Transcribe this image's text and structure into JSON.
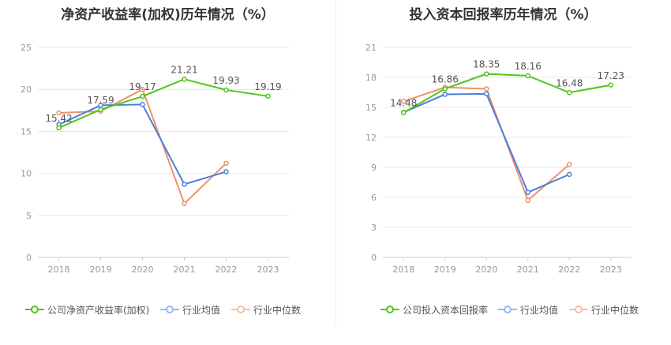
{
  "colors": {
    "company": "#52c41a",
    "avg": "#4a7fd9",
    "median": "#f0906a",
    "grid": "#e6e6f0",
    "axis": "#999999",
    "label": "#555555"
  },
  "chart_data": [
    {
      "type": "line",
      "title": "净资产收益率(加权)历年情况（%）",
      "x": [
        "2018",
        "2019",
        "2020",
        "2021",
        "2022",
        "2023"
      ],
      "y_ticks": [
        "0",
        "5",
        "10",
        "15",
        "20",
        "25"
      ],
      "ylim": [
        0,
        25
      ],
      "legend_position": "bottom",
      "series": [
        {
          "name": "公司净资产收益率(加权)",
          "key": "company",
          "values": [
            15.42,
            17.59,
            19.17,
            21.21,
            19.93,
            19.19
          ],
          "labels": [
            "15.42",
            "17.59",
            "19.17",
            "21.21",
            "19.93",
            "19.19"
          ]
        },
        {
          "name": "行业均值",
          "key": "avg",
          "values": [
            15.8,
            18.1,
            18.2,
            8.7,
            10.2,
            null
          ]
        },
        {
          "name": "行业中位数",
          "key": "median",
          "values": [
            17.2,
            17.4,
            20.0,
            6.4,
            11.2,
            null
          ]
        }
      ]
    },
    {
      "type": "line",
      "title": "投入资本回报率历年情况（%）",
      "x": [
        "2018",
        "2019",
        "2020",
        "2021",
        "2022",
        "2023"
      ],
      "y_ticks": [
        "0",
        "3",
        "6",
        "9",
        "12",
        "15",
        "18",
        "21"
      ],
      "ylim": [
        0,
        21
      ],
      "legend_position": "bottom",
      "series": [
        {
          "name": "公司投入资本回报率",
          "key": "company",
          "values": [
            14.48,
            16.86,
            18.35,
            18.16,
            16.48,
            17.23
          ],
          "labels": [
            "14.48",
            "16.86",
            "18.35",
            "18.16",
            "16.48",
            "17.23"
          ]
        },
        {
          "name": "行业均值",
          "key": "avg",
          "values": [
            14.5,
            16.3,
            16.35,
            6.5,
            8.3,
            null
          ]
        },
        {
          "name": "行业中位数",
          "key": "median",
          "values": [
            15.6,
            17.0,
            16.85,
            5.7,
            9.3,
            null
          ]
        }
      ]
    }
  ]
}
